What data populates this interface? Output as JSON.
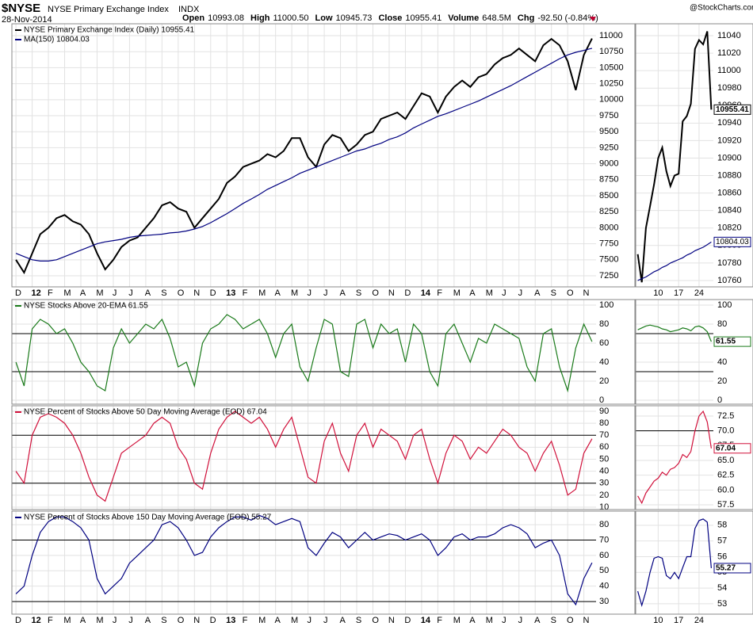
{
  "header": {
    "symbol": "$NYSE",
    "name": "NYSE Primary Exchange Index",
    "exchange": "INDX",
    "date": "28-Nov-2014",
    "source": "@StockCharts.com",
    "ohlc": [
      {
        "label": "Open",
        "value": "10993.08"
      },
      {
        "label": "High",
        "value": "11000.50"
      },
      {
        "label": "Low",
        "value": "10945.73"
      },
      {
        "label": "Close",
        "value": "10955.41"
      },
      {
        "label": "Volume",
        "value": "648.5M"
      },
      {
        "label": "Chg",
        "value": "-92.50 (-0.84%)"
      }
    ]
  },
  "chart_data": [
    {
      "type": "line",
      "categories": [
        "D",
        null,
        "12",
        null,
        "F",
        null,
        "M",
        null,
        "A",
        null,
        "M",
        null,
        "J",
        null,
        "J",
        null,
        "A",
        null,
        "S",
        null,
        "O",
        null,
        "N",
        null,
        "D",
        null,
        "13",
        null,
        "F",
        null,
        "M",
        null,
        "A",
        null,
        "M",
        null,
        "J",
        null,
        "J",
        null,
        "A",
        null,
        "S",
        null,
        "O",
        null,
        "N",
        null,
        "D",
        null,
        "14",
        null,
        "F",
        null,
        "M",
        null,
        "A",
        null,
        "M",
        null,
        "J",
        null,
        "J",
        null,
        "A",
        null,
        "S",
        null,
        "O",
        null,
        "N",
        null
      ],
      "series": [
        {
          "name": "NYSE Primary Exchange Index (Daily) 10955.41",
          "color": "#000000",
          "values": [
            7500,
            7300,
            7600,
            7900,
            8000,
            8150,
            8200,
            8100,
            8050,
            7900,
            7600,
            7350,
            7500,
            7700,
            7800,
            7850,
            8000,
            8150,
            8350,
            8400,
            8300,
            8250,
            8000,
            8150,
            8300,
            8450,
            8700,
            8800,
            8950,
            9000,
            9050,
            9150,
            9100,
            9200,
            9400,
            9400,
            9100,
            8950,
            9300,
            9450,
            9400,
            9200,
            9300,
            9450,
            9500,
            9700,
            9750,
            9800,
            9700,
            9900,
            10100,
            10050,
            9800,
            10050,
            10200,
            10300,
            10200,
            10350,
            10400,
            10550,
            10650,
            10700,
            10800,
            10700,
            10600,
            10850,
            10950,
            10850,
            10600,
            10150,
            10700,
            10955.41
          ]
        },
        {
          "name": "MA(150) 10804.03",
          "color": "#000080",
          "values": [
            7600,
            7550,
            7500,
            7480,
            7480,
            7500,
            7550,
            7600,
            7650,
            7700,
            7750,
            7780,
            7800,
            7820,
            7850,
            7870,
            7880,
            7890,
            7900,
            7920,
            7930,
            7950,
            7980,
            8020,
            8080,
            8150,
            8220,
            8300,
            8380,
            8450,
            8520,
            8600,
            8660,
            8720,
            8780,
            8850,
            8900,
            8950,
            9000,
            9050,
            9100,
            9150,
            9200,
            9230,
            9280,
            9320,
            9380,
            9420,
            9480,
            9560,
            9620,
            9680,
            9740,
            9780,
            9830,
            9880,
            9930,
            9980,
            10040,
            10100,
            10160,
            10220,
            10290,
            10360,
            10430,
            10500,
            10570,
            10640,
            10700,
            10740,
            10770,
            10804.03
          ]
        }
      ],
      "ylim": [
        7077,
        11186
      ],
      "yticks": [
        7250,
        7500,
        7750,
        8000,
        8250,
        8500,
        8750,
        9000,
        9250,
        9500,
        9750,
        10000,
        10250,
        10500,
        10750,
        11000
      ],
      "grid": true
    },
    {
      "type": "line",
      "series": [
        {
          "name": "NYSE Stocks Above 20-EMA 61.55",
          "color": "#1a7a1a",
          "values": [
            40,
            15,
            75,
            85,
            80,
            70,
            75,
            60,
            40,
            30,
            15,
            10,
            55,
            75,
            60,
            70,
            80,
            75,
            85,
            65,
            35,
            40,
            15,
            60,
            75,
            80,
            90,
            85,
            75,
            80,
            85,
            70,
            45,
            70,
            80,
            35,
            20,
            55,
            85,
            80,
            30,
            25,
            80,
            85,
            55,
            80,
            70,
            75,
            40,
            80,
            70,
            30,
            15,
            70,
            80,
            60,
            40,
            65,
            60,
            80,
            75,
            70,
            65,
            35,
            20,
            70,
            75,
            35,
            10,
            55,
            80,
            61.55
          ]
        }
      ],
      "ylim": [
        -4.2,
        105.8
      ],
      "yticks": [
        0,
        20,
        40,
        60,
        80,
        100
      ],
      "hlines": [
        70,
        30
      ],
      "grid": true
    },
    {
      "type": "line",
      "series": [
        {
          "name": "NYSE Percent of Stocks Above 50 Day Moving Average (EOD) 67.04",
          "color": "#d0103a",
          "values": [
            40,
            30,
            70,
            85,
            88,
            85,
            80,
            70,
            55,
            35,
            20,
            15,
            35,
            55,
            60,
            65,
            70,
            80,
            85,
            80,
            60,
            50,
            30,
            25,
            55,
            75,
            85,
            90,
            85,
            80,
            85,
            75,
            60,
            75,
            85,
            60,
            35,
            30,
            65,
            80,
            55,
            40,
            70,
            80,
            60,
            75,
            70,
            65,
            50,
            70,
            75,
            50,
            30,
            55,
            70,
            65,
            50,
            60,
            55,
            65,
            75,
            70,
            60,
            55,
            40,
            55,
            65,
            45,
            20,
            25,
            55,
            67.04
          ]
        }
      ],
      "ylim": [
        8,
        94.6
      ],
      "yticks": [
        10,
        20,
        30,
        40,
        50,
        60,
        70,
        80,
        90
      ],
      "hlines": [
        70,
        30
      ],
      "grid": true
    },
    {
      "type": "line",
      "categories": [
        "D",
        null,
        "12",
        null,
        "F",
        null,
        "M",
        null,
        "A",
        null,
        "M",
        null,
        "J",
        null,
        "J",
        null,
        "A",
        null,
        "S",
        null,
        "O",
        null,
        "N",
        null,
        "D",
        null,
        "13",
        null,
        "F",
        null,
        "M",
        null,
        "A",
        null,
        "M",
        null,
        "J",
        null,
        "J",
        null,
        "A",
        null,
        "S",
        null,
        "O",
        null,
        "N",
        null,
        "D",
        null,
        "14",
        null,
        "F",
        null,
        "M",
        null,
        "A",
        null,
        "M",
        null,
        "J",
        null,
        "J",
        null,
        "A",
        null,
        "S",
        null,
        "O",
        null,
        "N",
        null
      ],
      "series": [
        {
          "name": "NYSE Percent of Stocks Above 150 Day Moving Average (EOD) 55.27",
          "color": "#000080",
          "values": [
            35,
            40,
            60,
            75,
            82,
            85,
            85,
            82,
            78,
            70,
            45,
            35,
            40,
            45,
            55,
            60,
            65,
            70,
            80,
            82,
            78,
            70,
            60,
            62,
            72,
            78,
            82,
            85,
            85,
            83,
            86,
            84,
            80,
            82,
            84,
            82,
            65,
            60,
            68,
            75,
            72,
            65,
            70,
            75,
            70,
            72,
            74,
            73,
            70,
            72,
            74,
            70,
            60,
            65,
            72,
            74,
            70,
            72,
            72,
            74,
            78,
            80,
            78,
            74,
            65,
            68,
            70,
            60,
            35,
            28,
            45,
            55.27
          ]
        }
      ],
      "ylim": [
        21.8,
        88.8
      ],
      "yticks": [
        30,
        40,
        50,
        60,
        70,
        80
      ],
      "hlines": [
        70,
        30
      ],
      "grid": true
    },
    {
      "type": "line",
      "categories": [
        null,
        null,
        null,
        null,
        null,
        "10",
        null,
        null,
        null,
        null,
        "17",
        null,
        null,
        null,
        null,
        "24",
        null,
        null,
        null
      ],
      "series": [
        {
          "color": "#000000",
          "values": [
            10790,
            10758,
            10820,
            10845,
            10870,
            10900,
            10912,
            10885,
            10868,
            10880,
            10882,
            10942,
            10948,
            10962,
            11025,
            11035,
            11030,
            11045,
            10955.41
          ]
        },
        {
          "color": "#000080",
          "values": [
            10760,
            10762,
            10764,
            10767,
            10770,
            10772,
            10775,
            10777,
            10780,
            10782,
            10784,
            10786,
            10789,
            10791,
            10794,
            10796,
            10798,
            10801,
            10804.03
          ]
        }
      ],
      "ylim": [
        10752.7,
        11053.6
      ],
      "yticks": [
        10760,
        10780,
        10800,
        10820,
        10840,
        10860,
        10880,
        10900,
        10920,
        10940,
        10960,
        10980,
        11000,
        11020,
        11040
      ],
      "grid": true
    },
    {
      "type": "line",
      "series": [
        {
          "color": "#1a7a1a",
          "values": [
            74,
            76,
            78,
            79,
            78,
            77,
            75,
            74,
            72,
            73,
            74,
            76,
            75,
            73,
            77,
            78,
            76,
            72,
            61.55
          ]
        }
      ],
      "ylim": [
        -4.2,
        105.8
      ],
      "yticks": [
        0,
        20,
        40,
        60,
        80,
        100
      ],
      "hlines": [
        70,
        30
      ],
      "grid": true
    },
    {
      "type": "line",
      "series": [
        {
          "color": "#d0103a",
          "values": [
            59,
            57.8,
            59.5,
            60.5,
            61.5,
            62,
            63,
            62.5,
            63.5,
            63.8,
            64.5,
            66,
            65.5,
            66.5,
            70,
            72.5,
            73.3,
            71.5,
            67.04
          ]
        }
      ],
      "ylim": [
        56.7,
        74.24
      ],
      "yticks": [
        57.5,
        {
          "value": 60,
          "label": "60.0"
        },
        62.5,
        {
          "value": 65,
          "label": "65.0"
        },
        67.5,
        {
          "value": 70,
          "label": "70.0"
        },
        72.5
      ],
      "hlines": [
        70
      ],
      "grid": true
    },
    {
      "type": "line",
      "categories": [
        null,
        null,
        null,
        null,
        null,
        "10",
        null,
        null,
        null,
        null,
        "17",
        null,
        null,
        null,
        null,
        "24",
        null,
        null,
        null
      ],
      "series": [
        {
          "color": "#000080",
          "values": [
            53.8,
            52.9,
            53.8,
            55,
            55.9,
            56,
            55.9,
            54.8,
            54.6,
            55,
            54.6,
            55.3,
            56,
            56,
            57.8,
            58.3,
            58.4,
            58.2,
            55.27
          ]
        }
      ],
      "ylim": [
        52.34,
        58.9
      ],
      "yticks": [
        53,
        54,
        55,
        56,
        57,
        58
      ],
      "grid": true
    }
  ]
}
